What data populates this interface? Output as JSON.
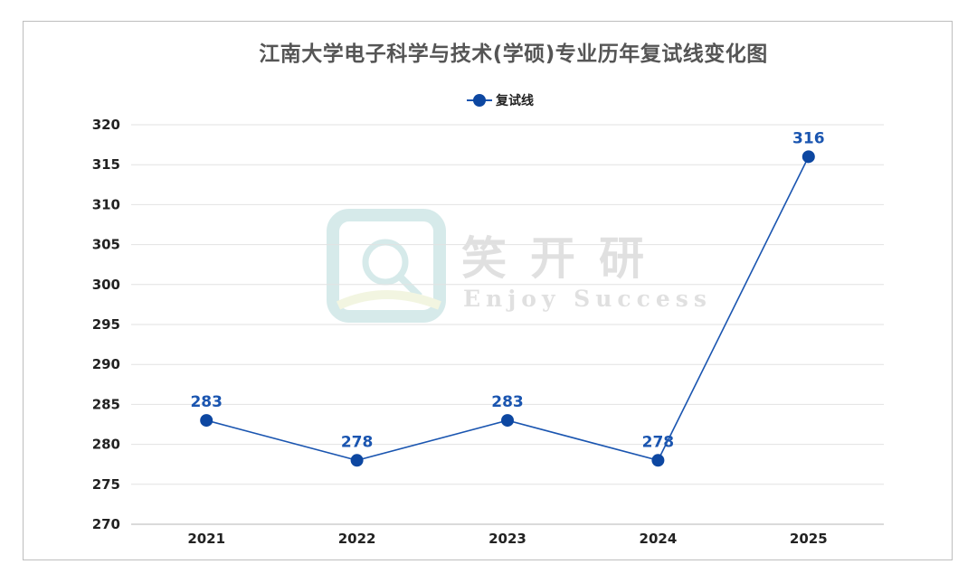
{
  "chart_data": {
    "type": "line",
    "title": "江南大学电子科学与技术(学硕)专业历年复试线变化图",
    "categories": [
      "2021",
      "2022",
      "2023",
      "2024",
      "2025"
    ],
    "series": [
      {
        "name": "复试线",
        "values": [
          283,
          278,
          283,
          278,
          316
        ],
        "color": "#0d47a1"
      }
    ],
    "ylim": [
      270,
      320
    ],
    "yticks": [
      "270",
      "275",
      "280",
      "285",
      "290",
      "295",
      "300",
      "305",
      "310",
      "315",
      "320"
    ],
    "data_labels": [
      "283",
      "278",
      "283",
      "278",
      "316"
    ],
    "grid": true,
    "legend": "top-center",
    "xlabel": "",
    "ylabel": ""
  },
  "watermark": {
    "chinese": "笑开研",
    "english": "Enjoy Success"
  },
  "colors": {
    "line": "#1a55b0",
    "marker": "#0d47a1",
    "data_label": "#1a55b0",
    "grid": "#e2e2e2"
  }
}
